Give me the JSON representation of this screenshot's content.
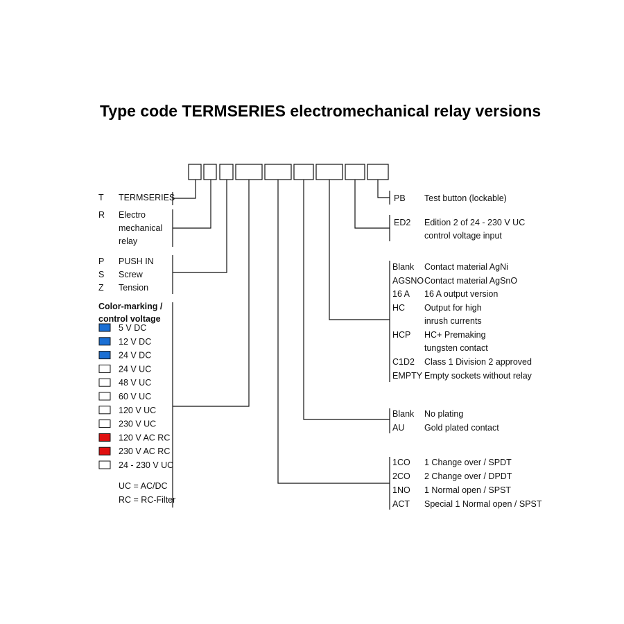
{
  "title": "Type code TERMSERIES electromechanical relay versions",
  "left": {
    "t": {
      "code": "T",
      "lines": [
        "TERMSERIES"
      ]
    },
    "r": {
      "code": "R",
      "lines": [
        "Electro",
        "mechanical",
        "relay"
      ]
    },
    "conn": [
      {
        "code": "P",
        "label": "PUSH IN"
      },
      {
        "code": "S",
        "label": "Screw"
      },
      {
        "code": "Z",
        "label": "Tension"
      }
    ],
    "color_heading": [
      "Color-marking /",
      "control voltage"
    ],
    "voltages": [
      {
        "label": "5 V DC",
        "color": "#1a6fd4"
      },
      {
        "label": "12 V DC",
        "color": "#1a6fd4"
      },
      {
        "label": "24 V DC",
        "color": "#1a6fd4"
      },
      {
        "label": "24 V UC",
        "color": "#ffffff"
      },
      {
        "label": "48 V UC",
        "color": "#ffffff"
      },
      {
        "label": "60 V UC",
        "color": "#ffffff"
      },
      {
        "label": "120 V UC",
        "color": "#ffffff"
      },
      {
        "label": "230 V UC",
        "color": "#ffffff"
      },
      {
        "label": "120 V AC RC",
        "color": "#e01010"
      },
      {
        "label": "230 V AC RC",
        "color": "#e01010"
      },
      {
        "label": "24 - 230 V UC",
        "color": "#ffffff"
      }
    ],
    "notes": [
      "UC = AC/DC",
      "RC = RC-Filter"
    ]
  },
  "right": {
    "pb": {
      "code": "PB",
      "desc": "Test button (lockable)"
    },
    "ed2": {
      "code": "ED2",
      "lines": [
        "Edition 2 of 24 - 230 V UC",
        "control voltage input"
      ]
    },
    "contact": [
      {
        "code": "Blank",
        "lines": [
          "Contact material AgNi"
        ]
      },
      {
        "code": "AGSNO",
        "lines": [
          "Contact material AgSnO"
        ]
      },
      {
        "code": "16 A",
        "lines": [
          "16 A output version"
        ]
      },
      {
        "code": "HC",
        "lines": [
          "Output for high",
          "inrush currents"
        ]
      },
      {
        "code": "HCP",
        "lines": [
          "HC+ Premaking",
          "tungsten contact"
        ]
      },
      {
        "code": "C1D2",
        "lines": [
          "Class 1 Division 2 approved"
        ]
      },
      {
        "code": "EMPTY",
        "lines": [
          "Empty sockets without relay"
        ]
      }
    ],
    "plating": [
      {
        "code": "Blank",
        "desc": "No plating"
      },
      {
        "code": "AU",
        "desc": "Gold plated contact"
      }
    ],
    "config": [
      {
        "code": "1CO",
        "desc": "1 Change over / SPDT"
      },
      {
        "code": "2CO",
        "desc": "2 Change over / DPDT"
      },
      {
        "code": "1NO",
        "desc": "1 Normal open / SPST"
      },
      {
        "code": "ACT",
        "desc": "Special 1 Normal open / SPST"
      }
    ]
  }
}
